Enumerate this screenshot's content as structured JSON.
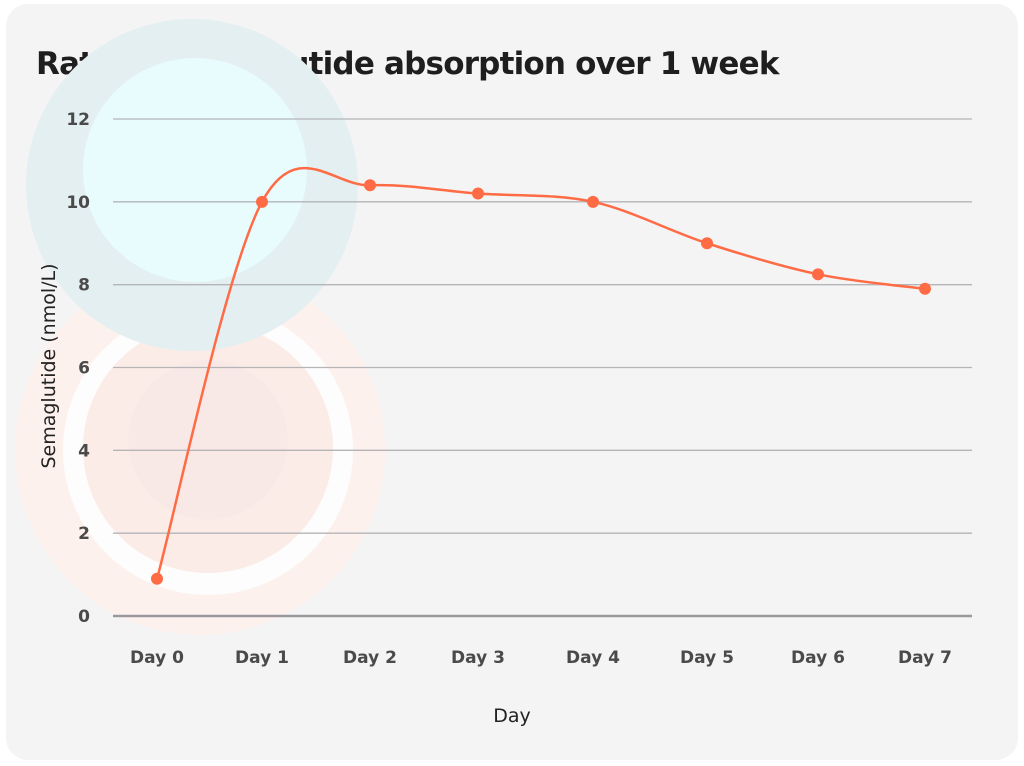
{
  "chart_data": {
    "type": "line",
    "title": "Rate of semaglutide absorption over 1 week",
    "xlabel": "Day",
    "ylabel": "Semaglutide (nmol/L)",
    "categories": [
      "Day 0",
      "Day 1",
      "Day 2",
      "Day 3",
      "Day 4",
      "Day 5",
      "Day 6",
      "Day 7"
    ],
    "values": [
      0.9,
      10.0,
      10.4,
      10.2,
      10.0,
      9.0,
      8.25,
      7.9
    ],
    "ylim": [
      0,
      12
    ],
    "yticks": [
      "0",
      "2",
      "4",
      "6",
      "8",
      "10",
      "12"
    ],
    "grid": true,
    "legend": "none",
    "line_color": "#ff6b45",
    "grid_color": "#b5b5b8"
  }
}
